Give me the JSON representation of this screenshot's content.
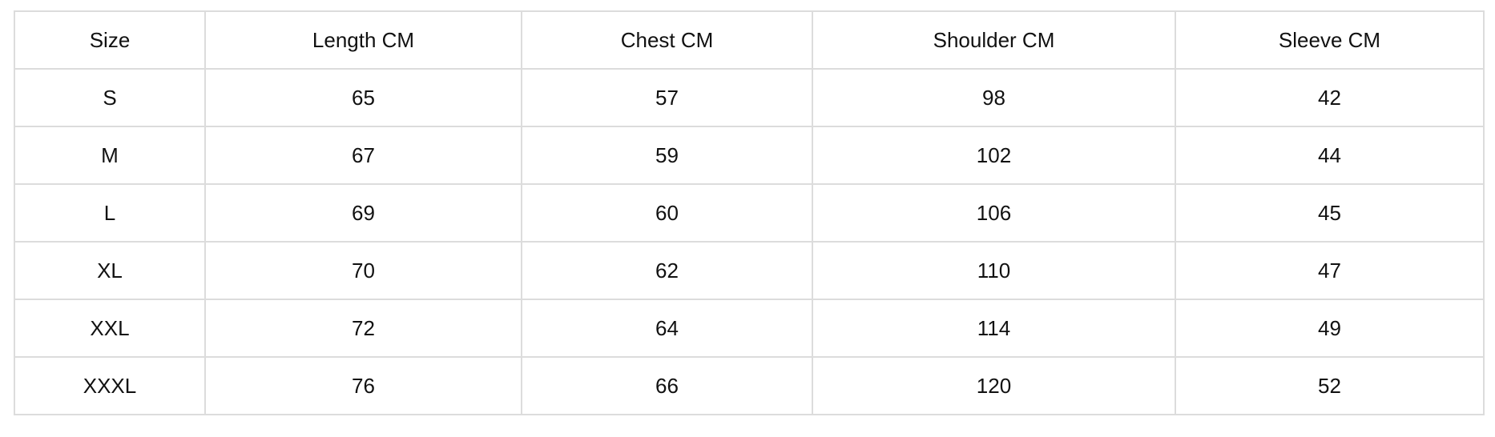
{
  "table": {
    "header": [
      "Size",
      "Length CM",
      "Chest CM",
      "Shoulder CM",
      "Sleeve CM"
    ],
    "rows": [
      [
        "S",
        65,
        57,
        98,
        42
      ],
      [
        "M",
        67,
        59,
        102,
        44
      ],
      [
        "L",
        69,
        60,
        106,
        45
      ],
      [
        "XL",
        70,
        62,
        110,
        47
      ],
      [
        "XXL",
        72,
        64,
        114,
        49
      ],
      [
        "XXXL",
        76,
        66,
        120,
        52
      ]
    ]
  }
}
